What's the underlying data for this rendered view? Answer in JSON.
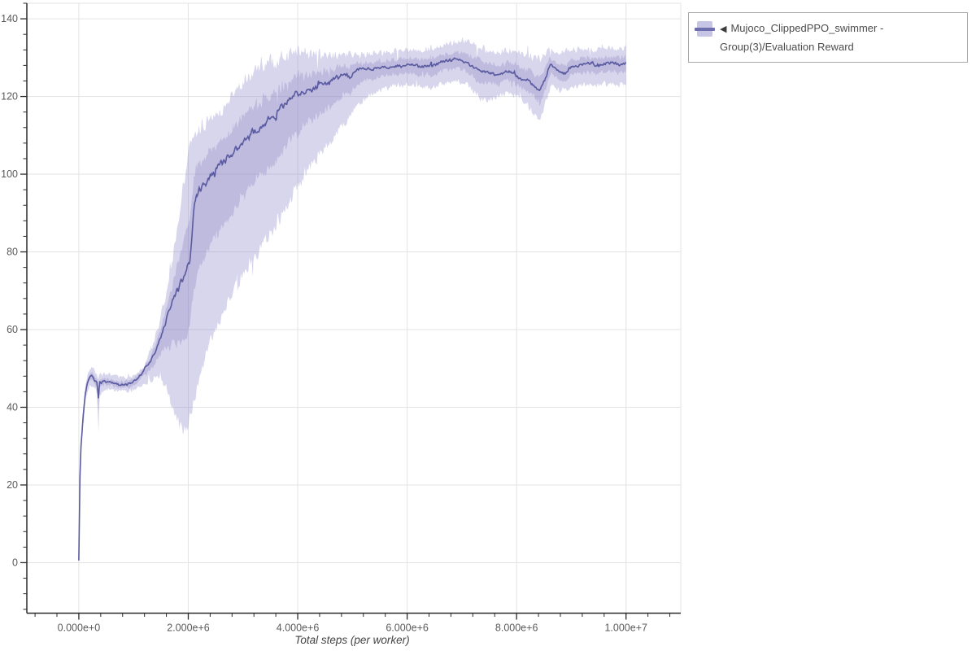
{
  "page": {
    "background": "#ffffff"
  },
  "legend": {
    "collapse_icon": "◀",
    "label": "Mujoco_ClippedPPO_swimmer - Group(3)/Evaluation Reward",
    "swatch_fill": "#c7c5e6",
    "swatch_line": "#6e6eae"
  },
  "chart_data": {
    "type": "line",
    "title": "",
    "xlabel": "Total steps (per worker)",
    "ylabel": "",
    "xlim": [
      -950000,
      11000000
    ],
    "ylim": [
      -13,
      144
    ],
    "grid": true,
    "legend_position": "top-right-outside",
    "x_ticks": {
      "values_millions": [
        0,
        2,
        4,
        6,
        8,
        10
      ],
      "labels": [
        "0.000e+0",
        "2.000e+6",
        "4.000e+6",
        "6.000e+6",
        "8.000e+6",
        "1.000e+7"
      ],
      "minor_step_millions": 0.4,
      "minor_range_millions": [
        -0.8,
        10.8
      ]
    },
    "y_ticks": {
      "values": [
        0,
        20,
        40,
        60,
        80,
        100,
        120,
        140
      ],
      "minor_step": 4,
      "minor_range": [
        -12,
        144
      ]
    },
    "colors": {
      "line": "#5a5aa0",
      "band": "#8c88c8",
      "grid": "#e3e3e3",
      "axis": "#2b2b2b",
      "tick_label": "#5a5a5a",
      "axis_label": "#444444"
    },
    "series": [
      {
        "name": "Mujoco_ClippedPPO_swimmer - Group(3)/Evaluation Reward",
        "x_unit": 1000000,
        "mean": [
          [
            0,
            0.3
          ],
          [
            0.02,
            22
          ],
          [
            0.04,
            30
          ],
          [
            0.08,
            38
          ],
          [
            0.12,
            43.5
          ],
          [
            0.16,
            46.5
          ],
          [
            0.2,
            47.8
          ],
          [
            0.24,
            48.2
          ],
          [
            0.28,
            47.2
          ],
          [
            0.33,
            46.2
          ],
          [
            0.36,
            42.5
          ],
          [
            0.38,
            46.3
          ],
          [
            0.45,
            46.6
          ],
          [
            0.55,
            46.4
          ],
          [
            0.65,
            46.1
          ],
          [
            0.75,
            45.8
          ],
          [
            0.85,
            45.7
          ],
          [
            0.95,
            46.3
          ],
          [
            1.05,
            47.2
          ],
          [
            1.15,
            48.6
          ],
          [
            1.22,
            50.3
          ],
          [
            1.3,
            51.5
          ],
          [
            1.4,
            54.5
          ],
          [
            1.5,
            58
          ],
          [
            1.6,
            62.5
          ],
          [
            1.7,
            66.5
          ],
          [
            1.78,
            69.5
          ],
          [
            1.88,
            72.5
          ],
          [
            1.97,
            75
          ],
          [
            2.03,
            77.5
          ],
          [
            2.06,
            83
          ],
          [
            2.1,
            91
          ],
          [
            2.15,
            94.5
          ],
          [
            2.25,
            97
          ],
          [
            2.4,
            99.5
          ],
          [
            2.55,
            102
          ],
          [
            2.7,
            104
          ],
          [
            2.85,
            106
          ],
          [
            3.0,
            108.5
          ],
          [
            3.15,
            110.5
          ],
          [
            3.3,
            112
          ],
          [
            3.42,
            113.5
          ],
          [
            3.5,
            114
          ],
          [
            3.56,
            114.2
          ],
          [
            3.65,
            116.5
          ],
          [
            3.8,
            118.5
          ],
          [
            3.95,
            120.5
          ],
          [
            4.1,
            121
          ],
          [
            4.25,
            121.5
          ],
          [
            4.4,
            122.8
          ],
          [
            4.55,
            123.5
          ],
          [
            4.7,
            124.8
          ],
          [
            4.85,
            125.8
          ],
          [
            4.95,
            124.8
          ],
          [
            5.05,
            126.8
          ],
          [
            5.2,
            127.2
          ],
          [
            5.35,
            126.8
          ],
          [
            5.5,
            127.5
          ],
          [
            5.65,
            127.5
          ],
          [
            5.8,
            127.8
          ],
          [
            5.95,
            128
          ],
          [
            6.1,
            128.3
          ],
          [
            6.25,
            127.6
          ],
          [
            6.4,
            127.9
          ],
          [
            6.55,
            128.4
          ],
          [
            6.7,
            129.2
          ],
          [
            6.85,
            129.6
          ],
          [
            7.0,
            129.3
          ],
          [
            7.1,
            128.6
          ],
          [
            7.25,
            127.2
          ],
          [
            7.4,
            126.4
          ],
          [
            7.55,
            126
          ],
          [
            7.7,
            125.4
          ],
          [
            7.8,
            126.6
          ],
          [
            7.95,
            126
          ],
          [
            8.05,
            124.6
          ],
          [
            8.2,
            124.2
          ],
          [
            8.32,
            122.8
          ],
          [
            8.42,
            121.3
          ],
          [
            8.52,
            124.5
          ],
          [
            8.62,
            128.3
          ],
          [
            8.75,
            126.6
          ],
          [
            8.88,
            125.8
          ],
          [
            9.0,
            127.6
          ],
          [
            9.15,
            128
          ],
          [
            9.3,
            128.6
          ],
          [
            9.45,
            127.8
          ],
          [
            9.6,
            128.4
          ],
          [
            9.75,
            128.8
          ],
          [
            9.9,
            128.2
          ],
          [
            10.0,
            128.6
          ]
        ],
        "band_low": [
          [
            0,
            0.2
          ],
          [
            0.02,
            20
          ],
          [
            0.04,
            28
          ],
          [
            0.08,
            36
          ],
          [
            0.12,
            41.5
          ],
          [
            0.16,
            44.5
          ],
          [
            0.2,
            45.8
          ],
          [
            0.24,
            46
          ],
          [
            0.28,
            45
          ],
          [
            0.33,
            43.8
          ],
          [
            0.36,
            34.5
          ],
          [
            0.38,
            43.5
          ],
          [
            0.5,
            44.6
          ],
          [
            0.7,
            44.4
          ],
          [
            0.9,
            44
          ],
          [
            1.05,
            44.8
          ],
          [
            1.2,
            46
          ],
          [
            1.35,
            47
          ],
          [
            1.5,
            47.5
          ],
          [
            1.6,
            45.5
          ],
          [
            1.7,
            41
          ],
          [
            1.8,
            36
          ],
          [
            1.9,
            33.5
          ],
          [
            2.0,
            35.5
          ],
          [
            2.1,
            41
          ],
          [
            2.2,
            48
          ],
          [
            2.35,
            55
          ],
          [
            2.5,
            60.5
          ],
          [
            2.7,
            66
          ],
          [
            2.9,
            71.5
          ],
          [
            3.1,
            76.5
          ],
          [
            3.3,
            81
          ],
          [
            3.5,
            85
          ],
          [
            3.7,
            89.5
          ],
          [
            3.9,
            94.5
          ],
          [
            4.1,
            99.5
          ],
          [
            4.3,
            103.5
          ],
          [
            4.5,
            107
          ],
          [
            4.7,
            110.5
          ],
          [
            4.9,
            114
          ],
          [
            5.1,
            118
          ],
          [
            5.3,
            120.5
          ],
          [
            5.5,
            121.5
          ],
          [
            5.7,
            122.5
          ],
          [
            5.9,
            123
          ],
          [
            6.1,
            123
          ],
          [
            6.3,
            122
          ],
          [
            6.5,
            122.5
          ],
          [
            6.7,
            123.5
          ],
          [
            6.9,
            124
          ],
          [
            7.1,
            123
          ],
          [
            7.3,
            120
          ],
          [
            7.45,
            118.5
          ],
          [
            7.6,
            119.5
          ],
          [
            7.8,
            121
          ],
          [
            8.0,
            120
          ],
          [
            8.15,
            118.5
          ],
          [
            8.3,
            116
          ],
          [
            8.42,
            114
          ],
          [
            8.55,
            119
          ],
          [
            8.65,
            123
          ],
          [
            8.8,
            121.5
          ],
          [
            9.0,
            122.5
          ],
          [
            9.2,
            123
          ],
          [
            9.4,
            122.8
          ],
          [
            9.6,
            123.2
          ],
          [
            9.8,
            123
          ],
          [
            10.0,
            122.6
          ]
        ],
        "band_high": [
          [
            0,
            0.5
          ],
          [
            0.02,
            24
          ],
          [
            0.04,
            32
          ],
          [
            0.08,
            40
          ],
          [
            0.12,
            45.5
          ],
          [
            0.16,
            48.5
          ],
          [
            0.2,
            49.8
          ],
          [
            0.24,
            50.4
          ],
          [
            0.28,
            49.4
          ],
          [
            0.33,
            48.4
          ],
          [
            0.36,
            47.5
          ],
          [
            0.4,
            48.6
          ],
          [
            0.6,
            48.2
          ],
          [
            0.8,
            47.6
          ],
          [
            1.0,
            48.2
          ],
          [
            1.1,
            49.2
          ],
          [
            1.2,
            51
          ],
          [
            1.3,
            54
          ],
          [
            1.4,
            58
          ],
          [
            1.5,
            63
          ],
          [
            1.6,
            69.5
          ],
          [
            1.7,
            77
          ],
          [
            1.8,
            86
          ],
          [
            1.9,
            96
          ],
          [
            2.0,
            104.5
          ],
          [
            2.08,
            109
          ],
          [
            2.2,
            111.5
          ],
          [
            2.35,
            113.5
          ],
          [
            2.5,
            115.5
          ],
          [
            2.65,
            117.5
          ],
          [
            2.8,
            120
          ],
          [
            2.95,
            123
          ],
          [
            3.1,
            125.5
          ],
          [
            3.25,
            127
          ],
          [
            3.4,
            128.5
          ],
          [
            3.6,
            129
          ],
          [
            3.8,
            130.5
          ],
          [
            4.0,
            131.8
          ],
          [
            4.2,
            131.2
          ],
          [
            4.4,
            130.8
          ],
          [
            4.6,
            130.4
          ],
          [
            4.8,
            130.8
          ],
          [
            5.0,
            131
          ],
          [
            5.2,
            130.6
          ],
          [
            5.4,
            131
          ],
          [
            5.6,
            131.4
          ],
          [
            5.8,
            131.8
          ],
          [
            6.0,
            132.2
          ],
          [
            6.2,
            131.8
          ],
          [
            6.4,
            132.2
          ],
          [
            6.6,
            132.8
          ],
          [
            6.8,
            133.8
          ],
          [
            7.0,
            134.6
          ],
          [
            7.1,
            134.2
          ],
          [
            7.3,
            132.6
          ],
          [
            7.5,
            131.6
          ],
          [
            7.7,
            131.2
          ],
          [
            7.9,
            132
          ],
          [
            8.1,
            131.2
          ],
          [
            8.3,
            130.4
          ],
          [
            8.45,
            129.6
          ],
          [
            8.6,
            132.2
          ],
          [
            8.8,
            131
          ],
          [
            9.0,
            132
          ],
          [
            9.2,
            132.4
          ],
          [
            9.4,
            131.8
          ],
          [
            9.6,
            132.4
          ],
          [
            9.8,
            132.2
          ],
          [
            10.0,
            132.4
          ]
        ]
      }
    ]
  }
}
